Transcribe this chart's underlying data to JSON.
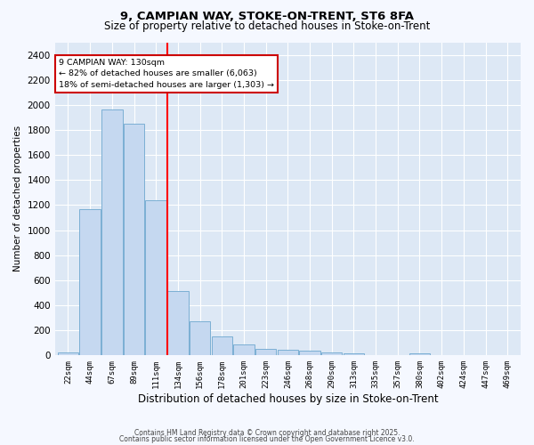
{
  "title_line1": "9, CAMPIAN WAY, STOKE-ON-TRENT, ST6 8FA",
  "title_line2": "Size of property relative to detached houses in Stoke-on-Trent",
  "xlabel": "Distribution of detached houses by size in Stoke-on-Trent",
  "ylabel": "Number of detached properties",
  "categories": [
    "22sqm",
    "44sqm",
    "67sqm",
    "89sqm",
    "111sqm",
    "134sqm",
    "156sqm",
    "178sqm",
    "201sqm",
    "223sqm",
    "246sqm",
    "268sqm",
    "290sqm",
    "313sqm",
    "335sqm",
    "357sqm",
    "380sqm",
    "402sqm",
    "424sqm",
    "447sqm",
    "469sqm"
  ],
  "values": [
    25,
    1170,
    1960,
    1850,
    1240,
    515,
    270,
    155,
    90,
    50,
    45,
    35,
    22,
    15,
    0,
    0,
    18,
    0,
    0,
    0,
    0
  ],
  "bar_color": "#c5d8f0",
  "bar_edge_color": "#7bafd4",
  "red_line_x": 4.5,
  "red_line_label": "9 CAMPIAN WAY: 130sqm",
  "annotation_line2": "← 82% of detached houses are smaller (6,063)",
  "annotation_line3": "18% of semi-detached houses are larger (1,303) →",
  "annotation_box_facecolor": "#ffffff",
  "annotation_box_edgecolor": "#cc0000",
  "ylim": [
    0,
    2500
  ],
  "yticks": [
    0,
    200,
    400,
    600,
    800,
    1000,
    1200,
    1400,
    1600,
    1800,
    2000,
    2200,
    2400
  ],
  "fig_facecolor": "#f5f8ff",
  "plot_facecolor": "#dde8f5",
  "grid_color": "#ffffff",
  "footer_line1": "Contains HM Land Registry data © Crown copyright and database right 2025.",
  "footer_line2": "Contains public sector information licensed under the Open Government Licence v3.0."
}
